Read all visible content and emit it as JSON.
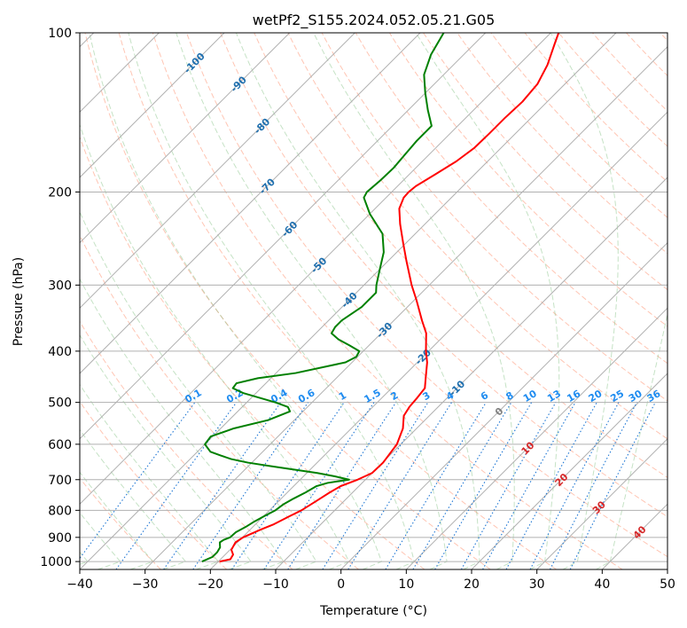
{
  "chart_data": {
    "type": "skew-t",
    "title": "wetPf2_S155.2024.052.05.21.G05",
    "xlabel": "Temperature (°C)",
    "ylabel": "Pressure (hPa)",
    "xlim": [
      -40,
      50
    ],
    "ylim": [
      1035,
      100
    ],
    "x_ticks": [
      "−40",
      "−30",
      "−20",
      "−10",
      "0",
      "10",
      "20",
      "30",
      "40",
      "50"
    ],
    "y_ticks": [
      "100",
      "200",
      "300",
      "400",
      "500",
      "600",
      "700",
      "800",
      "900",
      "1000"
    ],
    "grid": true,
    "series": [
      {
        "role": "temperature",
        "color": "#ff0000",
        "points": [
          [
            1000,
            -19.8
          ],
          [
            990,
            -18.5
          ],
          [
            970,
            -18.8
          ],
          [
            950,
            -19.8
          ],
          [
            920,
            -20.3
          ],
          [
            900,
            -19.9
          ],
          [
            870,
            -18.4
          ],
          [
            850,
            -17.2
          ],
          [
            820,
            -16.0
          ],
          [
            800,
            -15.1
          ],
          [
            770,
            -14.3
          ],
          [
            740,
            -13.5
          ],
          [
            720,
            -12.8
          ],
          [
            700,
            -11.2
          ],
          [
            680,
            -10.0
          ],
          [
            650,
            -9.9
          ],
          [
            600,
            -10.6
          ],
          [
            560,
            -12.1
          ],
          [
            530,
            -13.9
          ],
          [
            510,
            -14.4
          ],
          [
            490,
            -14.6
          ],
          [
            470,
            -14.9
          ],
          [
            450,
            -16.3
          ],
          [
            420,
            -18.5
          ],
          [
            400,
            -20.4
          ],
          [
            370,
            -23.1
          ],
          [
            350,
            -25.7
          ],
          [
            320,
            -29.7
          ],
          [
            300,
            -32.7
          ],
          [
            270,
            -37.2
          ],
          [
            250,
            -40.4
          ],
          [
            230,
            -43.8
          ],
          [
            215,
            -46.3
          ],
          [
            205,
            -47.3
          ],
          [
            200,
            -47.4
          ],
          [
            195,
            -47.2
          ],
          [
            185,
            -46.0
          ],
          [
            175,
            -44.8
          ],
          [
            165,
            -44.1
          ],
          [
            155,
            -44.0
          ],
          [
            145,
            -44.0
          ],
          [
            135,
            -43.8
          ],
          [
            125,
            -44.2
          ],
          [
            115,
            -45.6
          ],
          [
            105,
            -47.7
          ],
          [
            100,
            -48.8
          ]
        ]
      },
      {
        "role": "dewpoint",
        "color": "#008000",
        "points": [
          [
            1000,
            -22.5
          ],
          [
            980,
            -21.6
          ],
          [
            960,
            -21.6
          ],
          [
            940,
            -21.9
          ],
          [
            920,
            -22.7
          ],
          [
            910,
            -22.5
          ],
          [
            900,
            -21.9
          ],
          [
            880,
            -21.8
          ],
          [
            860,
            -21.1
          ],
          [
            840,
            -20.6
          ],
          [
            820,
            -19.9
          ],
          [
            800,
            -19.1
          ],
          [
            780,
            -18.8
          ],
          [
            760,
            -18.1
          ],
          [
            740,
            -17.2
          ],
          [
            720,
            -16.5
          ],
          [
            710,
            -15.3
          ],
          [
            700,
            -12.5
          ],
          [
            690,
            -15.2
          ],
          [
            680,
            -18.4
          ],
          [
            670,
            -22.5
          ],
          [
            660,
            -26.6
          ],
          [
            650,
            -30.6
          ],
          [
            640,
            -33.7
          ],
          [
            630,
            -35.9
          ],
          [
            620,
            -38.0
          ],
          [
            600,
            -40.0
          ],
          [
            580,
            -40.3
          ],
          [
            560,
            -38.0
          ],
          [
            540,
            -34.0
          ],
          [
            520,
            -32.0
          ],
          [
            510,
            -33.0
          ],
          [
            500,
            -35.6
          ],
          [
            480,
            -42.0
          ],
          [
            470,
            -44.3
          ],
          [
            460,
            -44.5
          ],
          [
            450,
            -42.0
          ],
          [
            440,
            -37.0
          ],
          [
            420,
            -31.0
          ],
          [
            410,
            -30.2
          ],
          [
            400,
            -30.6
          ],
          [
            390,
            -33.0
          ],
          [
            380,
            -35.6
          ],
          [
            370,
            -37.6
          ],
          [
            360,
            -38.0
          ],
          [
            350,
            -38.0
          ],
          [
            330,
            -37.0
          ],
          [
            310,
            -37.0
          ],
          [
            300,
            -38.1
          ],
          [
            280,
            -40.0
          ],
          [
            260,
            -42.0
          ],
          [
            240,
            -45.0
          ],
          [
            220,
            -50.0
          ],
          [
            205,
            -53.4
          ],
          [
            200,
            -53.8
          ],
          [
            190,
            -53.5
          ],
          [
            180,
            -53.4
          ],
          [
            170,
            -53.7
          ],
          [
            160,
            -54.0
          ],
          [
            150,
            -54.0
          ],
          [
            140,
            -57.0
          ],
          [
            130,
            -60.0
          ],
          [
            120,
            -63.0
          ],
          [
            110,
            -65.0
          ],
          [
            100,
            -66.4
          ]
        ]
      }
    ],
    "mixing_ratio_labels": [
      "0.1",
      "0.2",
      "0.4",
      "0.6",
      "1",
      "1.5",
      "2",
      "3",
      "4",
      "6",
      "8",
      "10",
      "13",
      "16",
      "20",
      "25",
      "30",
      "36"
    ],
    "isotherm_labels": [
      "-100",
      "-90",
      "-80",
      "-70",
      "-60",
      "-50",
      "-40",
      "-30",
      "-20",
      "-10",
      "0",
      "10",
      "20",
      "30",
      "40"
    ]
  }
}
